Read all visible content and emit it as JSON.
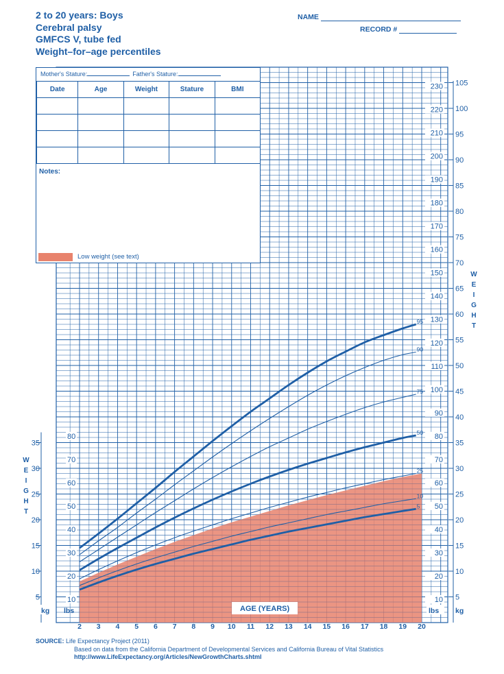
{
  "header": {
    "title_lines": [
      "2 to 20 years: Boys",
      "Cerebral palsy",
      "GMFCS V, tube fed",
      "Weight–for–age percentiles"
    ],
    "name_label": "NAME",
    "record_label": "RECORD #"
  },
  "record_table": {
    "mother_stature_label": "Mother's Stature:",
    "father_stature_label": "Father's Stature:",
    "columns": [
      "Date",
      "Age",
      "Weight",
      "Stature",
      "BMI"
    ],
    "notes_label": "Notes:",
    "legend_label": "Low weight (see text)"
  },
  "colors": {
    "ink": "#1f5fa6",
    "low_weight_fill": "#e8836d"
  },
  "chart_data": {
    "type": "line",
    "xlabel": "AGE (YEARS)",
    "ylabel": "WEIGHT",
    "x_ticks": [
      2,
      3,
      4,
      5,
      6,
      7,
      8,
      9,
      10,
      11,
      12,
      13,
      14,
      15,
      16,
      17,
      18,
      19,
      20
    ],
    "xlim": [
      2,
      20
    ],
    "ylim_kg": [
      0,
      108
    ],
    "kg_ticks_left": [
      5,
      10,
      15,
      20,
      25,
      30,
      35
    ],
    "lbs_ticks_left": [
      10,
      20,
      30,
      40,
      50,
      60,
      70,
      80
    ],
    "kg_ticks_right": [
      5,
      10,
      15,
      20,
      25,
      30,
      35,
      40,
      45,
      50,
      55,
      60,
      65,
      70,
      75,
      80,
      85,
      90,
      95,
      100,
      105
    ],
    "lbs_ticks_right": [
      10,
      20,
      30,
      40,
      50,
      60,
      70,
      80,
      90,
      100,
      110,
      120,
      130,
      140,
      150,
      160,
      170,
      180,
      190,
      200,
      210,
      220,
      230
    ],
    "unit_kg": "kg",
    "unit_lbs": "lbs",
    "x": [
      2,
      3,
      4,
      5,
      6,
      7,
      8,
      9,
      10,
      11,
      12,
      13,
      14,
      15,
      16,
      17,
      18,
      19,
      19.7
    ],
    "series": [
      {
        "name": "95",
        "bold": true,
        "values": [
          14.5,
          17.3,
          20.2,
          23.2,
          26.2,
          29.3,
          32.3,
          35.3,
          38.2,
          41.0,
          43.6,
          46.2,
          48.6,
          50.8,
          52.7,
          54.5,
          55.9,
          57.2,
          58.0
        ]
      },
      {
        "name": "90",
        "bold": false,
        "values": [
          13.2,
          15.9,
          18.5,
          21.3,
          24.0,
          26.8,
          29.5,
          32.2,
          34.8,
          37.3,
          39.7,
          42.0,
          44.2,
          46.2,
          48.0,
          49.6,
          51.0,
          52.1,
          52.6
        ]
      },
      {
        "name": "75",
        "bold": false,
        "values": [
          11.8,
          14.2,
          16.6,
          19.0,
          21.4,
          23.7,
          26.0,
          28.2,
          30.3,
          32.3,
          34.2,
          35.9,
          37.6,
          39.1,
          40.5,
          41.8,
          42.9,
          43.8,
          44.4
        ]
      },
      {
        "name": "50",
        "bold": true,
        "values": [
          10.2,
          12.4,
          14.5,
          16.5,
          18.5,
          20.4,
          22.2,
          23.9,
          25.5,
          27.0,
          28.4,
          29.7,
          30.9,
          32.0,
          33.1,
          34.1,
          35.0,
          35.9,
          36.4
        ]
      },
      {
        "name": "25",
        "bold": false,
        "values": [
          8.5,
          10.3,
          12.0,
          13.6,
          15.1,
          16.5,
          17.8,
          19.0,
          20.2,
          21.3,
          22.4,
          23.4,
          24.4,
          25.3,
          26.2,
          27.0,
          27.8,
          28.5,
          29.0
        ]
      },
      {
        "name": "10",
        "bold": false,
        "values": [
          7.2,
          8.7,
          10.1,
          11.4,
          12.6,
          13.7,
          14.8,
          15.8,
          16.8,
          17.7,
          18.6,
          19.4,
          20.2,
          21.0,
          21.7,
          22.4,
          23.1,
          23.7,
          24.1
        ]
      },
      {
        "name": "5",
        "bold": true,
        "values": [
          6.4,
          7.8,
          9.1,
          10.3,
          11.4,
          12.4,
          13.4,
          14.3,
          15.2,
          16.1,
          16.9,
          17.7,
          18.4,
          19.1,
          19.8,
          20.5,
          21.1,
          21.7,
          22.1
        ]
      }
    ],
    "low_weight_upper": {
      "x": [
        2,
        3,
        4,
        5,
        6,
        7,
        8,
        9,
        10,
        11,
        12,
        13,
        14,
        15,
        16,
        17,
        18,
        19,
        20
      ],
      "values": [
        8.0,
        9.7,
        11.3,
        12.8,
        14.3,
        15.7,
        17.0,
        18.3,
        19.5,
        20.6,
        21.7,
        22.8,
        23.8,
        24.8,
        25.7,
        26.6,
        27.5,
        28.3,
        29.0
      ]
    }
  },
  "source": {
    "label": "SOURCE:",
    "line1": "Life Expectancy Project (2011)",
    "line2": "Based on data from the California Department of Developmental Services and California Bureau of Vital Statistics",
    "url": "http://www.LifeExpectancy.org/Articles/NewGrowthCharts.shtml"
  }
}
